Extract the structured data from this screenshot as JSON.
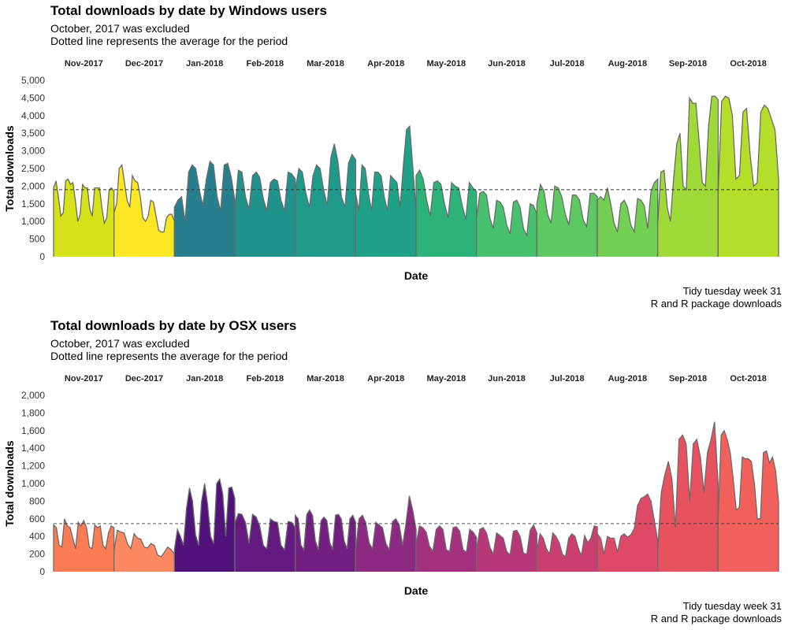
{
  "charts": [
    {
      "title": "Total downloads by date by Windows users",
      "subtitle_1": "October, 2017 was excluded",
      "subtitle_2": "Dotted line represents the average for the period",
      "caption_1": "Tidy tuesday week 31",
      "caption_2": "R and R package downloads"
    },
    {
      "title": "Total downloads by date by OSX users",
      "subtitle_1": "October, 2017 was excluded",
      "subtitle_2": "Dotted line represents the average for the period",
      "caption_1": "Tidy tuesday week 31",
      "caption_2": "R and R package downloads"
    }
  ],
  "chart_data": [
    {
      "type": "area",
      "title": "Total downloads by date by Windows users",
      "xlabel": "Date",
      "ylabel": "Total downloads",
      "ylim": [
        0,
        5000
      ],
      "yticks": [
        0,
        500,
        1000,
        1500,
        2000,
        2500,
        3000,
        3500,
        4000,
        4500,
        5000
      ],
      "average": 1900,
      "facets": [
        {
          "label": "Nov-2017",
          "color": "#d5e21a",
          "values": [
            1950,
            2150,
            1700,
            1150,
            1250,
            2150,
            2200,
            2050,
            2100,
            1600,
            1000,
            1200,
            2050,
            1950,
            1950,
            1350,
            1150,
            1950,
            1950,
            1950,
            1400,
            950,
            1100,
            1900,
            1950,
            1850
          ]
        },
        {
          "label": "Dec-2017",
          "color": "#fde725",
          "values": [
            1250,
            1500,
            2500,
            2600,
            2100,
            1600,
            1400,
            2300,
            2150,
            2100,
            1700,
            1100,
            1000,
            1150,
            1600,
            1550,
            1150,
            750,
            700,
            700,
            1100,
            1200,
            1200,
            1000
          ]
        },
        {
          "label": "Jan-2018",
          "color": "#277f8e",
          "values": [
            1400,
            1600,
            1700,
            1000,
            2400,
            2600,
            2500,
            1900,
            1450,
            2200,
            2700,
            2600,
            1700,
            1300,
            2600,
            2650,
            2250,
            1600
          ]
        },
        {
          "label": "Feb-2018",
          "color": "#21918c",
          "values": [
            1300,
            2450,
            2400,
            1700,
            1350,
            2300,
            2400,
            2250,
            1650,
            1300,
            2100,
            2200,
            2150,
            1600,
            1300,
            2400,
            2350,
            2200
          ]
        },
        {
          "label": "Mar-2018",
          "color": "#1f9a8a",
          "values": [
            1900,
            2500,
            2400,
            1800,
            1400,
            2300,
            2600,
            2500,
            1900,
            1450,
            2800,
            3200,
            2700,
            1700,
            1400,
            2650,
            2900,
            2750
          ]
        },
        {
          "label": "Apr-2018",
          "color": "#1fa187",
          "values": [
            1800,
            1300,
            2600,
            2500,
            1800,
            1300,
            2400,
            2400,
            2300,
            1700,
            1300,
            2300,
            2200,
            2100,
            1400,
            2600,
            3600,
            3700,
            2500,
            1300
          ]
        },
        {
          "label": "May-2018",
          "color": "#2db37a",
          "values": [
            2300,
            2450,
            2200,
            1600,
            1150,
            2100,
            2150,
            2050,
            1500,
            1100,
            2100,
            2000,
            1950,
            1450,
            1050,
            2100,
            1950,
            1850
          ]
        },
        {
          "label": "Jun-2018",
          "color": "#48c16e",
          "values": [
            1100,
            1800,
            1850,
            1750,
            1100,
            800,
            1600,
            1550,
            1400,
            900,
            650,
            1550,
            1600,
            1400,
            800,
            600,
            1500,
            1450,
            1200
          ]
        },
        {
          "label": "Jul-2018",
          "color": "#5ec962",
          "values": [
            1500,
            2050,
            1850,
            1200,
            950,
            2000,
            1950,
            1700,
            1200,
            900,
            1750,
            1750,
            1600,
            1050,
            850,
            1800,
            1800,
            1700
          ]
        },
        {
          "label": "Aug-2018",
          "color": "#74d055",
          "values": [
            1600,
            1700,
            1600,
            1950,
            1500,
            950,
            700,
            1500,
            1600,
            1400,
            900,
            700,
            1650,
            1600,
            1450,
            800,
            1850,
            2100,
            2200
          ]
        },
        {
          "label": "Sep-2018",
          "color": "#a0da39",
          "values": [
            950,
            2400,
            2450,
            1400,
            1000,
            2200,
            3200,
            3500,
            2000,
            1900,
            4500,
            4350,
            4350,
            3300,
            2100,
            2000,
            3700,
            4550,
            4550,
            4450
          ]
        },
        {
          "label": "Oct-2018",
          "color": "#b5de2b",
          "values": [
            1800,
            4400,
            4550,
            4500,
            4000,
            2200,
            2300,
            4100,
            4200,
            2900,
            2000,
            2100,
            4100,
            4300,
            4200,
            3900,
            3600,
            2200
          ]
        }
      ]
    },
    {
      "type": "area",
      "title": "Total downloads by date by OSX users",
      "xlabel": "Date",
      "ylabel": "Total downloads",
      "ylim": [
        0,
        2000
      ],
      "yticks": [
        0,
        200,
        400,
        600,
        800,
        1000,
        1200,
        1400,
        1600,
        1800,
        2000
      ],
      "average": 545,
      "facets": [
        {
          "label": "Nov-2017",
          "color": "#fb7b54",
          "values": [
            530,
            500,
            300,
            280,
            600,
            520,
            500,
            380,
            260,
            560,
            520,
            580,
            500,
            280,
            260,
            530,
            500,
            520,
            300,
            260,
            440,
            520,
            500
          ]
        },
        {
          "label": "Dec-2017",
          "color": "#fc8961",
          "values": [
            240,
            470,
            450,
            440,
            320,
            260,
            430,
            380,
            370,
            280,
            270,
            320,
            300,
            190,
            170,
            220,
            280,
            250,
            200
          ]
        },
        {
          "label": "Jan-2018",
          "color": "#51127c",
          "values": [
            250,
            480,
            400,
            300,
            720,
            950,
            800,
            420,
            300,
            800,
            1000,
            760,
            400,
            320,
            1000,
            1050,
            880,
            400,
            950,
            960,
            830
          ]
        },
        {
          "label": "Feb-2018",
          "color": "#641a80",
          "values": [
            550,
            660,
            650,
            560,
            320,
            650,
            620,
            520,
            300,
            260,
            600,
            570,
            560,
            300,
            250,
            570,
            560,
            500
          ]
        },
        {
          "label": "Mar-2018",
          "color": "#721f81",
          "values": [
            640,
            600,
            300,
            250,
            650,
            700,
            640,
            350,
            250,
            580,
            620,
            580,
            330,
            260,
            640,
            650,
            600,
            350,
            260,
            600,
            640,
            560
          ]
        },
        {
          "label": "Apr-2018",
          "color": "#8c2981",
          "values": [
            250,
            600,
            640,
            560,
            330,
            260,
            560,
            530,
            500,
            320,
            250,
            570,
            600,
            530,
            300,
            550,
            860,
            700,
            480
          ]
        },
        {
          "label": "May-2018",
          "color": "#a3307e",
          "values": [
            310,
            520,
            500,
            450,
            290,
            230,
            480,
            520,
            480,
            250,
            230,
            500,
            510,
            460,
            250,
            220,
            480,
            450,
            390
          ]
        },
        {
          "label": "Jun-2018",
          "color": "#b73779",
          "values": [
            240,
            480,
            500,
            440,
            280,
            200,
            440,
            410,
            380,
            230,
            190,
            460,
            470,
            400,
            210,
            200,
            470,
            530,
            440
          ]
        },
        {
          "label": "Jul-2018",
          "color": "#ca3e72",
          "values": [
            240,
            430,
            380,
            260,
            200,
            440,
            400,
            330,
            200,
            170,
            380,
            430,
            400,
            270,
            180,
            410,
            330,
            380,
            520,
            510
          ]
        },
        {
          "label": "Aug-2018",
          "color": "#de4968",
          "values": [
            430,
            380,
            200,
            400,
            380,
            380,
            220,
            400,
            430,
            390,
            420,
            490,
            750,
            830,
            850,
            880,
            800,
            580,
            350
          ]
        },
        {
          "label": "Sep-2018",
          "color": "#e8525f",
          "values": [
            260,
            900,
            1100,
            1250,
            1050,
            500,
            1500,
            1550,
            1450,
            800,
            1450,
            1500,
            1300,
            900,
            1350,
            1500,
            1700,
            1000
          ]
        },
        {
          "label": "Oct-2018",
          "color": "#f2605b",
          "values": [
            600,
            1550,
            1600,
            1500,
            1350,
            1050,
            700,
            730,
            1300,
            1280,
            1280,
            1250,
            1000,
            600,
            600,
            1350,
            1370,
            1230,
            1300,
            1150,
            800
          ]
        }
      ]
    }
  ]
}
